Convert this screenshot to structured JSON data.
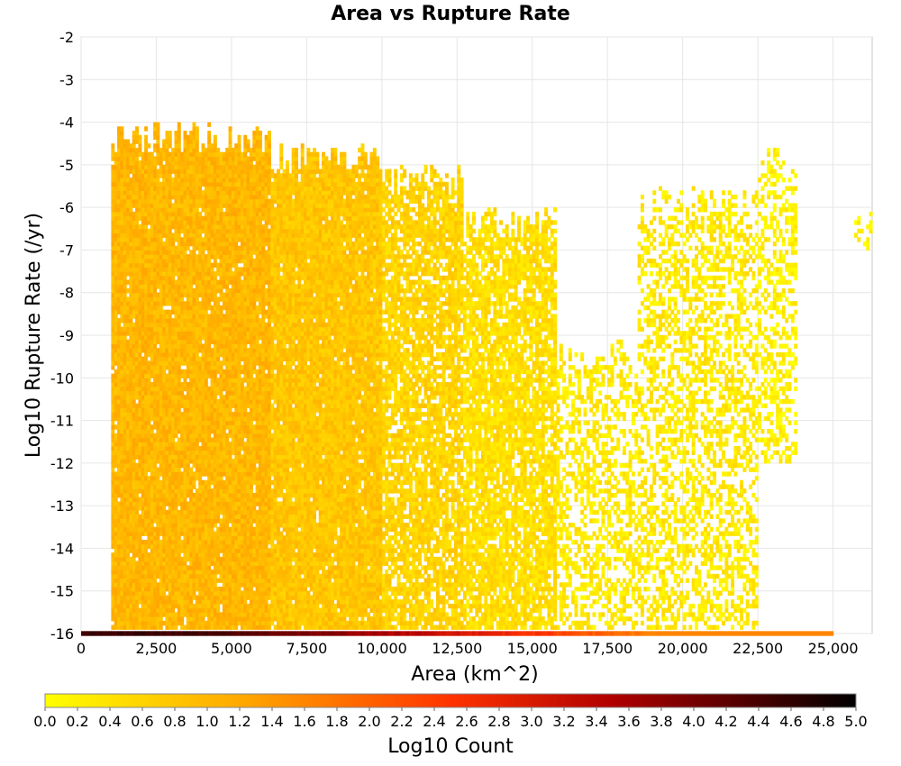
{
  "chart_data": {
    "type": "heatmap",
    "title": "Area vs Rupture Rate",
    "xlabel": "Area (km^2)",
    "ylabel": "Log10 Rupture Rate (/yr)",
    "xlim": [
      0,
      26300
    ],
    "ylim": [
      -16,
      -2
    ],
    "x_ticks": [
      "0",
      "2,500",
      "5,000",
      "7,500",
      "10,000",
      "12,500",
      "15,000",
      "17,500",
      "20,000",
      "22,500",
      "25,000"
    ],
    "x_tick_values": [
      0,
      2500,
      5000,
      7500,
      10000,
      12500,
      15000,
      17500,
      20000,
      22500,
      25000
    ],
    "y_ticks": [
      "-2",
      "-3",
      "-4",
      "-5",
      "-6",
      "-7",
      "-8",
      "-9",
      "-10",
      "-11",
      "-12",
      "-13",
      "-14",
      "-15",
      "-16"
    ],
    "y_tick_values": [
      -2,
      -3,
      -4,
      -5,
      -6,
      -7,
      -8,
      -9,
      -10,
      -11,
      -12,
      -13,
      -14,
      -15,
      -16
    ],
    "grid": true,
    "bin_width_area": 100,
    "bin_height_log_rate": 0.1,
    "density_regions": [
      {
        "area_range": [
          1000,
          6300
        ],
        "rate_top": -4.0,
        "rate_bottom": -15.9,
        "log10_count": 1.0
      },
      {
        "area_range": [
          6300,
          10000
        ],
        "rate_top": -4.5,
        "rate_bottom": -15.9,
        "log10_count": 0.8
      },
      {
        "area_range": [
          10000,
          12700
        ],
        "rate_top": -5.0,
        "rate_bottom": -15.9,
        "log10_count": 0.6
      },
      {
        "area_range": [
          12700,
          15800
        ],
        "rate_top": -6.0,
        "rate_bottom": -15.9,
        "log10_count": 0.45
      },
      {
        "area_range": [
          15800,
          18500
        ],
        "rate_top": -9.0,
        "rate_bottom": -15.9,
        "log10_count": 0.3
      },
      {
        "area_range": [
          18500,
          22500
        ],
        "rate_top": -5.5,
        "rate_bottom": -15.9,
        "log10_count": 0.3
      },
      {
        "area_range": [
          22500,
          23800
        ],
        "rate_top": -4.5,
        "rate_bottom": -12.0,
        "log10_count": 0.2
      },
      {
        "area_range": [
          25700,
          26300
        ],
        "rate_top": -6.0,
        "rate_bottom": -7.0,
        "log10_count": 0.1
      }
    ],
    "floor_row": {
      "log_rate": -16,
      "area_range": [
        0,
        25000
      ],
      "log10_count_peak": 4.5
    },
    "colorbar": {
      "label": "Log10 Count",
      "range": [
        0.0,
        5.0
      ],
      "ticks": [
        "0.0",
        "0.2",
        "0.4",
        "0.6",
        "0.8",
        "1.0",
        "1.2",
        "1.4",
        "1.6",
        "1.8",
        "2.0",
        "2.2",
        "2.4",
        "2.6",
        "2.8",
        "3.0",
        "3.2",
        "3.4",
        "3.6",
        "3.8",
        "4.0",
        "4.2",
        "4.4",
        "4.6",
        "4.8",
        "5.0"
      ],
      "colors": [
        "#ffff00",
        "#ffa500",
        "#ff3300",
        "#b00000",
        "#000000"
      ]
    }
  }
}
